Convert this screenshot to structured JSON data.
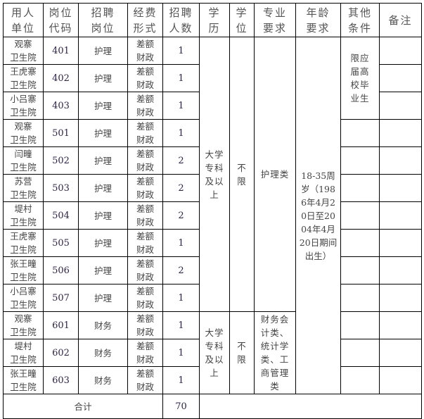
{
  "headers": [
    "用人单位",
    "岗位代码",
    "招聘岗位",
    "经费形式",
    "招聘人数",
    "学历",
    "学位",
    "专业要求",
    "年龄要求",
    "其他条件",
    "备注"
  ],
  "header_lines": [
    [
      "用人",
      "单位"
    ],
    [
      "岗位",
      "代码"
    ],
    [
      "招聘",
      "岗位"
    ],
    [
      "经费",
      "形式"
    ],
    [
      "招聘",
      "人数"
    ],
    [
      "学",
      "历"
    ],
    [
      "学",
      "位"
    ],
    [
      "专业",
      "要求"
    ],
    [
      "年龄",
      "要求"
    ],
    [
      "其他",
      "条件"
    ],
    [
      "备注"
    ]
  ],
  "rows": [
    {
      "unit": [
        "观寨",
        "卫生院"
      ],
      "code": "401",
      "post": "护理",
      "fund": [
        "差额",
        "财政"
      ],
      "count": "1"
    },
    {
      "unit": [
        "王虎寨",
        "卫生院"
      ],
      "code": "402",
      "post": "护理",
      "fund": [
        "差额",
        "财政"
      ],
      "count": "1"
    },
    {
      "unit": [
        "小吕寨",
        "卫生院"
      ],
      "code": "403",
      "post": "护理",
      "fund": [
        "差额",
        "财政"
      ],
      "count": "1"
    },
    {
      "unit": [
        "观寨",
        "卫生院"
      ],
      "code": "501",
      "post": "护理",
      "fund": [
        "差额",
        "财政"
      ],
      "count": "1"
    },
    {
      "unit": [
        "闫疃",
        "卫生院"
      ],
      "code": "502",
      "post": "护理",
      "fund": [
        "差额",
        "财政"
      ],
      "count": "2"
    },
    {
      "unit": [
        "苏营",
        "卫生院"
      ],
      "code": "503",
      "post": "护理",
      "fund": [
        "差额",
        "财政"
      ],
      "count": "2"
    },
    {
      "unit": [
        "堤村",
        "卫生院"
      ],
      "code": "504",
      "post": "护理",
      "fund": [
        "差额",
        "财政"
      ],
      "count": "2"
    },
    {
      "unit": [
        "王虎寨",
        "卫生院"
      ],
      "code": "505",
      "post": "护理",
      "fund": [
        "差额",
        "财政"
      ],
      "count": "1"
    },
    {
      "unit": [
        "张王疃",
        "卫生院"
      ],
      "code": "506",
      "post": "护理",
      "fund": [
        "差额",
        "财政"
      ],
      "count": "2"
    },
    {
      "unit": [
        "小吕寨",
        "卫生院"
      ],
      "code": "507",
      "post": "护理",
      "fund": [
        "差额",
        "财政"
      ],
      "count": "1"
    },
    {
      "unit": [
        "观寨",
        "卫生院"
      ],
      "code": "601",
      "post": "财务",
      "fund": [
        "差额",
        "财政"
      ],
      "count": "1"
    },
    {
      "unit": [
        "堤村",
        "卫生院"
      ],
      "code": "602",
      "post": "财务",
      "fund": [
        "差额",
        "财政"
      ],
      "count": "1"
    },
    {
      "unit": [
        "张王疃",
        "卫生院"
      ],
      "code": "603",
      "post": "财务",
      "fund": [
        "差额",
        "财政"
      ],
      "count": "1"
    }
  ],
  "groups": {
    "nursing": {
      "education": "大学专科及以上",
      "degree": "不限",
      "major": "护理类"
    },
    "finance": {
      "education": "大学专科及以上",
      "degree": "不限",
      "major": "财务会计类、统计学类、工商管理类"
    }
  },
  "age_requirement": "18-35周岁（1986年4月20日至2004年4月20日期间出生）",
  "other_conditions": "限应届高校毕业生",
  "total": {
    "label": "合计",
    "count": "70"
  }
}
